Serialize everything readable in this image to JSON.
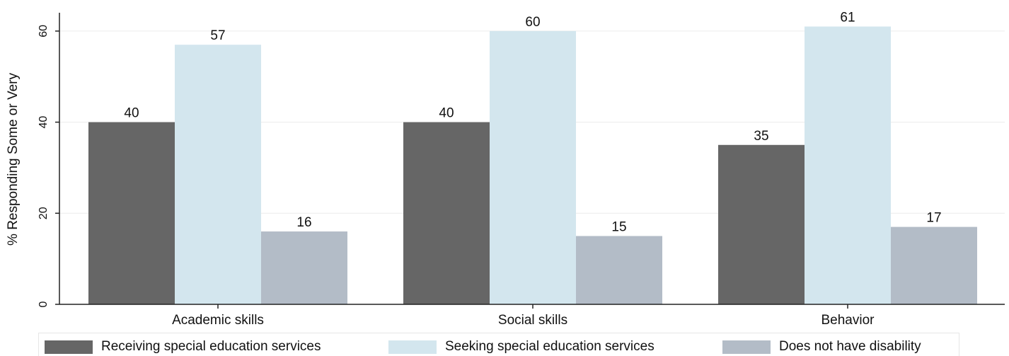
{
  "chart_data": {
    "type": "bar",
    "title": "",
    "xlabel": "",
    "ylabel": "% Responding Some or Very",
    "ylim": [
      0,
      65
    ],
    "yticks": [
      0,
      20,
      40,
      60
    ],
    "grid": true,
    "legend_position": "bottom",
    "categories": [
      "Academic skills",
      "Social skills",
      "Behavior"
    ],
    "series": [
      {
        "name": "Receiving special education services",
        "color": "#666666",
        "values": [
          40,
          40,
          35
        ]
      },
      {
        "name": "Seeking special education services",
        "color": "#d3e6ee",
        "values": [
          57,
          60,
          61
        ]
      },
      {
        "name": "Does not have disability",
        "color": "#b3bcc7",
        "values": [
          16,
          15,
          17
        ]
      }
    ]
  }
}
